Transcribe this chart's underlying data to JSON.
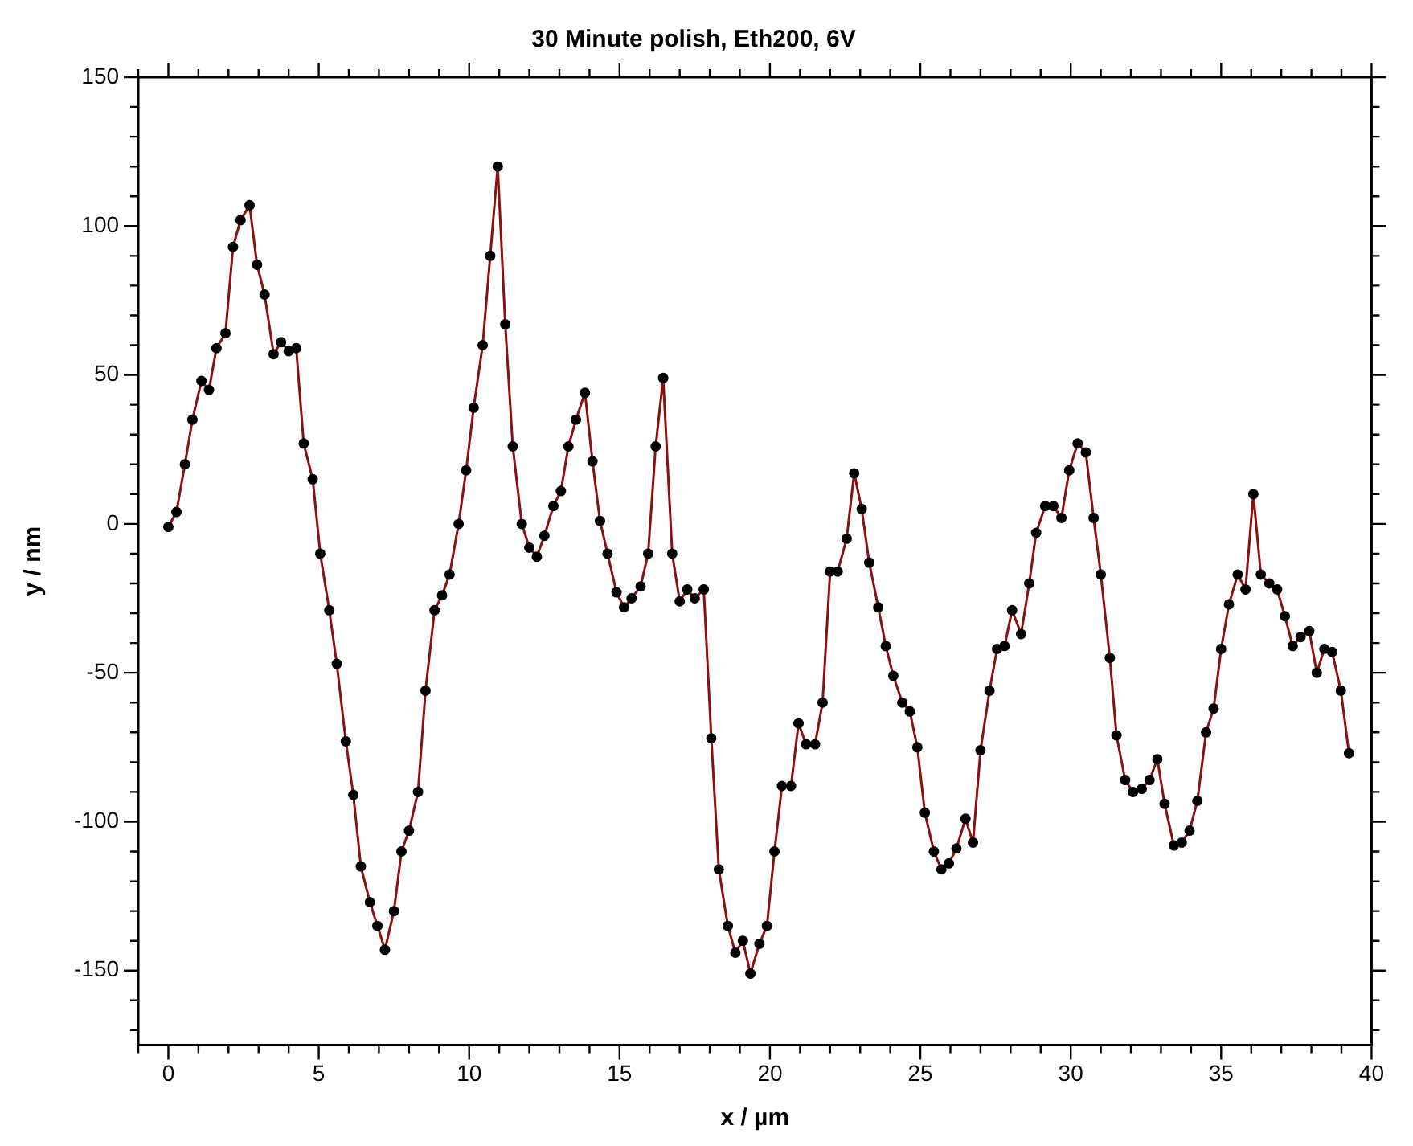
{
  "chart_data": {
    "type": "line",
    "title": "30 Minute polish, Eth200, 6V",
    "xlabel": "x / µm",
    "ylabel": "y / nm",
    "x": [
      0,
      0.27,
      0.55,
      0.8,
      1.1,
      1.35,
      1.6,
      1.9,
      2.15,
      2.4,
      2.7,
      2.95,
      3.2,
      3.5,
      3.75,
      4.0,
      4.25,
      4.5,
      4.8,
      5.05,
      5.35,
      5.6,
      5.9,
      6.15,
      6.4,
      6.7,
      6.95,
      7.2,
      7.5,
      7.75,
      8.0,
      8.3,
      8.55,
      8.85,
      9.1,
      9.35,
      9.65,
      9.9,
      10.15,
      10.45,
      10.7,
      10.95,
      11.2,
      11.45,
      11.75,
      12.0,
      12.25,
      12.5,
      12.8,
      13.05,
      13.3,
      13.55,
      13.85,
      14.1,
      14.35,
      14.6,
      14.9,
      15.15,
      15.4,
      15.7,
      15.95,
      16.2,
      16.45,
      16.75,
      17.0,
      17.25,
      17.5,
      17.8,
      18.05,
      18.3,
      18.6,
      18.85,
      19.1,
      19.35,
      19.65,
      19.9,
      20.15,
      20.4,
      20.7,
      20.95,
      21.2,
      21.5,
      21.75,
      22.0,
      22.25,
      22.55,
      22.8,
      23.05,
      23.3,
      23.6,
      23.85,
      24.1,
      24.4,
      24.65,
      24.9,
      25.15,
      25.45,
      25.7,
      25.95,
      26.2,
      26.5,
      26.75,
      27.0,
      27.3,
      27.55,
      27.8,
      28.05,
      28.35,
      28.62,
      28.85,
      29.15,
      29.42,
      29.69,
      29.95,
      30.23,
      30.5,
      30.76,
      31.0,
      31.3,
      31.52,
      31.81,
      32.07,
      32.36,
      32.62,
      32.88,
      33.12,
      33.43,
      33.69,
      33.95,
      34.21,
      34.5,
      34.75,
      35.0,
      35.26,
      35.55,
      35.81,
      36.07,
      36.32,
      36.6,
      36.86,
      37.12,
      37.38,
      37.64,
      37.93,
      38.18,
      38.43,
      38.69,
      38.98,
      39.25
    ],
    "series": [
      {
        "color": "#8b1010",
        "values": [
          -1,
          4,
          20,
          35,
          48,
          45,
          59,
          64,
          93,
          102,
          107,
          87,
          77,
          57,
          61,
          58,
          59,
          27,
          15,
          -10,
          -29,
          -47,
          -73,
          -91,
          -115,
          -127,
          -135,
          -143,
          -130,
          -110,
          -103,
          -90,
          -56,
          -29,
          -24,
          -17,
          0,
          18,
          39,
          60,
          90,
          120,
          67,
          26,
          0,
          -8,
          -11,
          -4,
          6,
          11,
          26,
          35,
          44,
          21,
          1,
          -10,
          -23,
          -28,
          -25,
          -21,
          -10,
          26,
          49,
          -10,
          -26,
          -22,
          -25,
          -22,
          -72,
          -116,
          -135,
          -144,
          -140,
          -151,
          -141,
          -135,
          -110,
          -88,
          -88,
          -67,
          -74,
          -74,
          -60,
          -16,
          -16,
          -5,
          17,
          5,
          -13,
          -28,
          -41,
          -51,
          -60,
          -63,
          -75,
          -97,
          -110,
          -116,
          -114,
          -109,
          -99,
          -107,
          -76,
          -56,
          -42,
          -41,
          -29,
          -37,
          -20,
          -3,
          6,
          6,
          2,
          18,
          27,
          24,
          2,
          -17,
          -45,
          -71,
          -86,
          -90,
          -89,
          -86,
          -79,
          -94,
          -108,
          -107,
          -103,
          -93,
          -70,
          -62,
          -42,
          -27,
          -17,
          -22,
          10,
          -17,
          -20,
          -22,
          -31,
          -41,
          -38,
          -36,
          -50,
          -42,
          -43,
          -56,
          -77
        ]
      }
    ],
    "marker": "circle",
    "line_style": "solid",
    "legend": false,
    "grid": false,
    "xlim": [
      -1,
      40
    ],
    "ylim": [
      -175,
      150
    ],
    "xticks": [
      {
        "value": -1,
        "label": null
      },
      0,
      {
        "value": 1,
        "label": null
      },
      {
        "value": 2,
        "label": null
      },
      {
        "value": 3,
        "label": null
      },
      {
        "value": 4,
        "label": null
      },
      5,
      {
        "value": 6,
        "label": null
      },
      {
        "value": 7,
        "label": null
      },
      {
        "value": 8,
        "label": null
      },
      {
        "value": 9,
        "label": null
      },
      10,
      {
        "value": 11,
        "label": null
      },
      {
        "value": 12,
        "label": null
      },
      {
        "value": 13,
        "label": null
      },
      {
        "value": 14,
        "label": null
      },
      15,
      {
        "value": 16,
        "label": null
      },
      {
        "value": 17,
        "label": null
      },
      {
        "value": 18,
        "label": null
      },
      {
        "value": 19,
        "label": null
      },
      20,
      {
        "value": 21,
        "label": null
      },
      {
        "value": 22,
        "label": null
      },
      {
        "value": 23,
        "label": null
      },
      {
        "value": 24,
        "label": null
      },
      25,
      {
        "value": 26,
        "label": null
      },
      {
        "value": 27,
        "label": null
      },
      {
        "value": 28,
        "label": null
      },
      {
        "value": 29,
        "label": null
      },
      30,
      {
        "value": 31,
        "label": null
      },
      {
        "value": 32,
        "label": null
      },
      {
        "value": 33,
        "label": null
      },
      {
        "value": 34,
        "label": null
      },
      35,
      {
        "value": 36,
        "label": null
      },
      {
        "value": 37,
        "label": null
      },
      {
        "value": 38,
        "label": null
      },
      {
        "value": 39,
        "label": null
      },
      40
    ],
    "yticks": [
      {
        "value": -170,
        "label": null
      },
      {
        "value": -160,
        "label": null
      },
      -150,
      {
        "value": -140,
        "label": null
      },
      {
        "value": -130,
        "label": null
      },
      {
        "value": -120,
        "label": null
      },
      {
        "value": -110,
        "label": null
      },
      -100,
      {
        "value": -90,
        "label": null
      },
      {
        "value": -80,
        "label": null
      },
      {
        "value": -70,
        "label": null
      },
      {
        "value": -60,
        "label": null
      },
      -50,
      {
        "value": -40,
        "label": null
      },
      {
        "value": -30,
        "label": null
      },
      {
        "value": -20,
        "label": null
      },
      {
        "value": -10,
        "label": null
      },
      0,
      {
        "value": 10,
        "label": null
      },
      {
        "value": 20,
        "label": null
      },
      {
        "value": 30,
        "label": null
      },
      {
        "value": 40,
        "label": null
      },
      50,
      {
        "value": 60,
        "label": null
      },
      {
        "value": 70,
        "label": null
      },
      {
        "value": 80,
        "label": null
      },
      {
        "value": 90,
        "label": null
      },
      100,
      {
        "value": 110,
        "label": null
      },
      {
        "value": 120,
        "label": null
      },
      {
        "value": 130,
        "label": null
      },
      {
        "value": 140,
        "label": null
      },
      150
    ]
  }
}
